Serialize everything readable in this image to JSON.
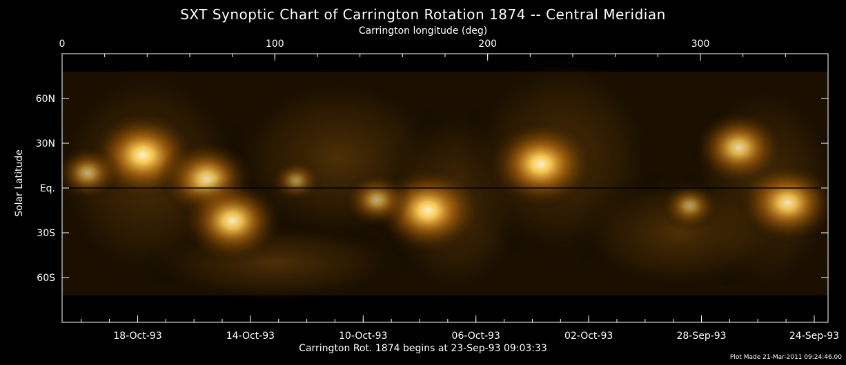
{
  "chart_data": {
    "type": "heatmap",
    "title": "SXT Synoptic Chart of Carrington Rotation 1874 -- Central Meridian",
    "top_axis_label": "Carrington longitude (deg)",
    "top_ticks": [
      "0",
      "100",
      "200",
      "300"
    ],
    "top_tick_values": [
      0,
      100,
      200,
      300
    ],
    "x_range": [
      0,
      360
    ],
    "ylabel": "Solar Latitude",
    "y_ticks": [
      "60N",
      "30N",
      "Eq.",
      "30S",
      "60S"
    ],
    "y_tick_values": [
      60,
      30,
      0,
      -30,
      -60
    ],
    "y_range": [
      -90,
      90
    ],
    "bottom_ticks": [
      "18-Oct-93",
      "14-Oct-93",
      "10-Oct-93",
      "06-Oct-93",
      "02-Oct-93",
      "28-Sep-93",
      "24-Sep-93"
    ],
    "bottom_tick_longitudes": [
      35.5,
      88.5,
      141.5,
      194.5,
      247.5,
      300.5,
      353.5
    ],
    "xlabel": "Carrington Rot. 1874 begins at 23-Sep-93 09:03:33",
    "active_regions": [
      {
        "lon": 38,
        "lat": 22,
        "strength": 1.0
      },
      {
        "lon": 68,
        "lat": 6,
        "strength": 0.85
      },
      {
        "lon": 80,
        "lat": -22,
        "strength": 0.95
      },
      {
        "lon": 172,
        "lat": -15,
        "strength": 1.0
      },
      {
        "lon": 225,
        "lat": 16,
        "strength": 1.0
      },
      {
        "lon": 318,
        "lat": 27,
        "strength": 0.8
      },
      {
        "lon": 341,
        "lat": -10,
        "strength": 0.9
      },
      {
        "lon": 148,
        "lat": -8,
        "strength": 0.5
      },
      {
        "lon": 12,
        "lat": 10,
        "strength": 0.5
      },
      {
        "lon": 110,
        "lat": 5,
        "strength": 0.3
      },
      {
        "lon": 295,
        "lat": -12,
        "strength": 0.4
      }
    ],
    "colormap": [
      "#000000",
      "#3a2300",
      "#7a4a00",
      "#c47a10",
      "#ffd070",
      "#ffffff"
    ]
  },
  "footer": {
    "plot_made": "Plot Made 21-Mar-2011 09:24:46.00"
  }
}
